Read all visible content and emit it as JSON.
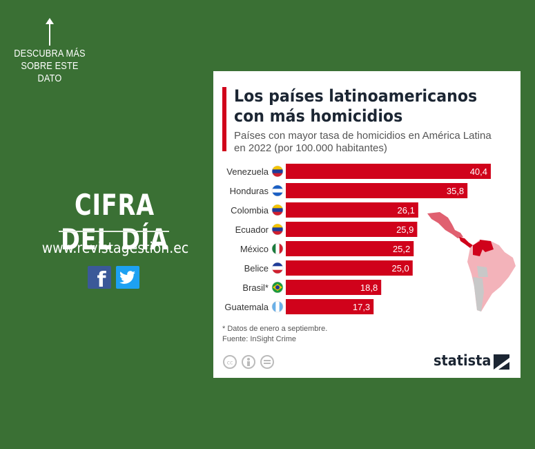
{
  "promo": {
    "cta_line1": "DESCUBRA MÁS",
    "cta_line2": "SOBRE ESTE",
    "cta_line3": "DATO",
    "headline": "CIFRA DEL DÍA",
    "website": "www.revistagestion.ec",
    "facebook_label": "f",
    "background_color": "#3a7034"
  },
  "footer": {
    "note_line1": "* Datos de enero a septiembre.",
    "note_line2": "Fuente: InSight Crime",
    "brand": "statista"
  },
  "chart_data": {
    "type": "bar",
    "orientation": "horizontal",
    "title_line1": "Los países latinoamericanos",
    "title_line2": "con más homicidios",
    "subtitle_line1": "Países con mayor tasa de homicidios en América Latina",
    "subtitle_line2": "en 2022 (por 100.000 habitantes)",
    "categories": [
      "Venezuela",
      "Honduras",
      "Colombia",
      "Ecuador",
      "México",
      "Belice",
      "Brasil*",
      "Guatemala"
    ],
    "values": [
      40.4,
      35.8,
      26.1,
      25.9,
      25.2,
      25.0,
      18.8,
      17.3
    ],
    "value_labels": [
      "40,4",
      "35,8",
      "26,1",
      "25,9",
      "25,2",
      "25,0",
      "18,8",
      "17,3"
    ],
    "xlim": [
      0,
      40.4
    ],
    "bar_color": "#d0021b",
    "grid": false,
    "legend": "none"
  }
}
